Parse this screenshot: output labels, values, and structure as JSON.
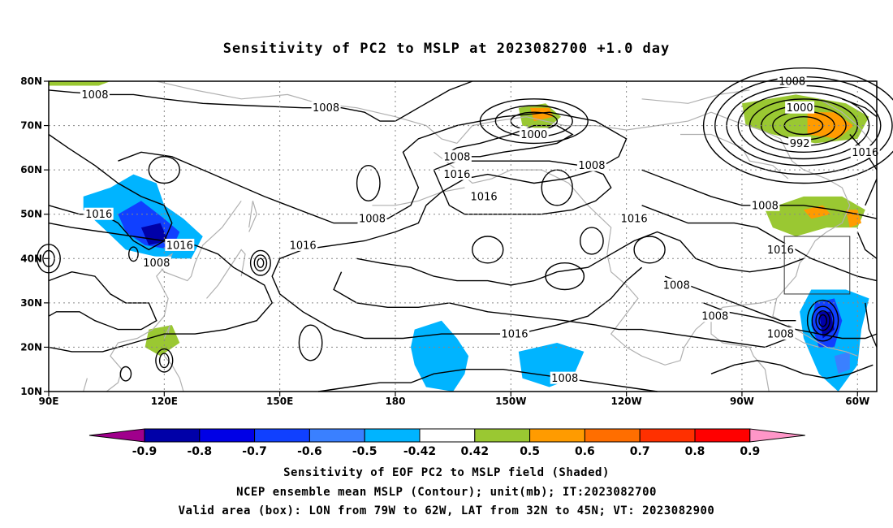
{
  "title": "Sensitivity of PC2 to MSLP at 2023082700 +1.0 day",
  "map": {
    "lon_range": [
      90,
      305
    ],
    "lat_range": [
      10,
      80
    ],
    "lat_ticks": [
      {
        "value": 80,
        "label": "80N"
      },
      {
        "value": 70,
        "label": "70N"
      },
      {
        "value": 60,
        "label": "60N"
      },
      {
        "value": 50,
        "label": "50N"
      },
      {
        "value": 40,
        "label": "40N"
      },
      {
        "value": 30,
        "label": "30N"
      },
      {
        "value": 20,
        "label": "20N"
      },
      {
        "value": 10,
        "label": "10N"
      }
    ],
    "lon_ticks": [
      {
        "value": 90,
        "label": "90E"
      },
      {
        "value": 120,
        "label": "120E"
      },
      {
        "value": 150,
        "label": "150E"
      },
      {
        "value": 180,
        "label": "180"
      },
      {
        "value": 210,
        "label": "150W"
      },
      {
        "value": 240,
        "label": "120W"
      },
      {
        "value": 270,
        "label": "90W"
      },
      {
        "value": 300,
        "label": "60W"
      }
    ],
    "grid": "dotted",
    "valid_box": {
      "lon_min": 281,
      "lon_max": 298,
      "lat_min": 32,
      "lat_max": 45
    },
    "contour_labels": [
      {
        "text": "1008",
        "lon": 102,
        "lat": 77
      },
      {
        "text": "1008",
        "lon": 162,
        "lat": 74
      },
      {
        "text": "1008",
        "lon": 283,
        "lat": 80
      },
      {
        "text": "1000",
        "lon": 285,
        "lat": 74
      },
      {
        "text": "1000",
        "lon": 216,
        "lat": 68
      },
      {
        "text": "992",
        "lon": 285,
        "lat": 66
      },
      {
        "text": "1008",
        "lon": 196,
        "lat": 63
      },
      {
        "text": "1016",
        "lon": 196,
        "lat": 59
      },
      {
        "text": "1008",
        "lon": 231,
        "lat": 61
      },
      {
        "text": "1016",
        "lon": 203,
        "lat": 54
      },
      {
        "text": "1016",
        "lon": 302,
        "lat": 64
      },
      {
        "text": "1016",
        "lon": 103,
        "lat": 50
      },
      {
        "text": "1008",
        "lon": 174,
        "lat": 49
      },
      {
        "text": "1016",
        "lon": 242,
        "lat": 49
      },
      {
        "text": "1008",
        "lon": 276,
        "lat": 52
      },
      {
        "text": "1016",
        "lon": 124,
        "lat": 43
      },
      {
        "text": "1016",
        "lon": 156,
        "lat": 43
      },
      {
        "text": "1016",
        "lon": 280,
        "lat": 42
      },
      {
        "text": "1008",
        "lon": 118,
        "lat": 39
      },
      {
        "text": "1008",
        "lon": 253,
        "lat": 34
      },
      {
        "text": "1008",
        "lon": 263,
        "lat": 27
      },
      {
        "text": "1008",
        "lon": 280,
        "lat": 23
      },
      {
        "text": "1016",
        "lon": 211,
        "lat": 23
      },
      {
        "text": "1008",
        "lon": 224,
        "lat": 13
      }
    ],
    "shaded_regions": [
      {
        "level": 0.5,
        "polygon": [
          [
            90,
            79
          ],
          [
            103,
            79
          ],
          [
            106,
            80
          ],
          [
            90,
            80
          ]
        ]
      },
      {
        "level": -0.5,
        "polygon": [
          [
            99,
            54
          ],
          [
            106,
            56
          ],
          [
            112,
            59
          ],
          [
            118,
            57
          ],
          [
            120,
            52
          ],
          [
            125,
            49
          ],
          [
            130,
            45
          ],
          [
            127,
            40
          ],
          [
            120,
            40
          ],
          [
            110,
            42
          ],
          [
            104,
            47
          ],
          [
            99,
            51
          ]
        ]
      },
      {
        "level": -0.7,
        "polygon": [
          [
            108,
            50
          ],
          [
            114,
            53
          ],
          [
            120,
            49
          ],
          [
            124,
            46
          ],
          [
            122,
            42
          ],
          [
            115,
            43
          ],
          [
            110,
            46
          ]
        ]
      },
      {
        "level": -0.8,
        "polygon": [
          [
            114,
            47
          ],
          [
            119,
            48
          ],
          [
            121,
            44
          ],
          [
            116,
            43
          ]
        ]
      },
      {
        "level": 0.5,
        "polygon": [
          [
            116,
            24
          ],
          [
            122,
            25
          ],
          [
            124,
            21
          ],
          [
            119,
            18
          ],
          [
            115,
            20
          ]
        ]
      },
      {
        "level": 0.5,
        "polygon": [
          [
            212,
            74
          ],
          [
            219,
            75
          ],
          [
            223,
            72
          ],
          [
            219,
            69
          ],
          [
            213,
            70
          ]
        ]
      },
      {
        "level": 0.6,
        "polygon": [
          [
            215,
            74
          ],
          [
            220,
            74
          ],
          [
            221,
            72
          ],
          [
            216,
            71
          ]
        ]
      },
      {
        "level": 0.5,
        "polygon": [
          [
            270,
            75
          ],
          [
            284,
            77
          ],
          [
            297,
            75
          ],
          [
            303,
            72
          ],
          [
            300,
            67
          ],
          [
            289,
            66
          ],
          [
            278,
            68
          ],
          [
            271,
            70
          ]
        ]
      },
      {
        "level": 0.6,
        "polygon": [
          [
            287,
            73
          ],
          [
            294,
            73
          ],
          [
            299,
            70
          ],
          [
            295,
            67
          ],
          [
            287,
            68
          ]
        ]
      },
      {
        "level": 0.5,
        "polygon": [
          [
            276,
            51
          ],
          [
            286,
            54
          ],
          [
            296,
            54
          ],
          [
            302,
            51
          ],
          [
            300,
            47
          ],
          [
            292,
            47
          ],
          [
            284,
            45
          ],
          [
            278,
            47
          ]
        ]
      },
      {
        "level": 0.6,
        "polygon": [
          [
            286,
            51
          ],
          [
            291,
            52
          ],
          [
            293,
            50
          ],
          [
            288,
            49
          ]
        ]
      },
      {
        "level": 0.6,
        "polygon": [
          [
            297,
            51
          ],
          [
            300,
            51
          ],
          [
            301,
            48
          ],
          [
            298,
            47
          ]
        ]
      },
      {
        "level": -0.5,
        "polygon": [
          [
            185,
            24
          ],
          [
            192,
            26
          ],
          [
            196,
            22
          ],
          [
            199,
            18
          ],
          [
            198,
            14
          ],
          [
            195,
            10
          ],
          [
            188,
            11
          ],
          [
            185,
            16
          ],
          [
            184,
            20
          ]
        ]
      },
      {
        "level": -0.5,
        "polygon": [
          [
            212,
            19
          ],
          [
            222,
            21
          ],
          [
            229,
            19
          ],
          [
            226,
            13
          ],
          [
            220,
            11
          ],
          [
            213,
            13
          ]
        ]
      },
      {
        "level": -0.5,
        "polygon": [
          [
            288,
            33
          ],
          [
            297,
            33
          ],
          [
            303,
            31
          ],
          [
            301,
            24
          ],
          [
            300,
            16
          ],
          [
            295,
            10
          ],
          [
            290,
            14
          ],
          [
            286,
            22
          ],
          [
            285,
            28
          ]
        ]
      },
      {
        "level": -0.7,
        "polygon": [
          [
            289,
            30
          ],
          [
            294,
            31
          ],
          [
            296,
            26
          ],
          [
            294,
            20
          ],
          [
            290,
            20
          ],
          [
            288,
            25
          ]
        ]
      },
      {
        "level": -0.8,
        "polygon": [
          [
            290,
            28
          ],
          [
            293,
            28
          ],
          [
            294,
            24
          ],
          [
            291,
            22
          ]
        ]
      },
      {
        "level": -0.6,
        "polygon": [
          [
            294,
            18
          ],
          [
            298,
            19
          ],
          [
            298,
            15
          ],
          [
            295,
            14
          ]
        ]
      }
    ]
  },
  "colorbar": {
    "levels": [
      "-0.9",
      "-0.8",
      "-0.7",
      "-0.6",
      "-0.5",
      "-0.42",
      "0.42",
      "0.5",
      "0.6",
      "0.7",
      "0.8",
      "0.9"
    ],
    "colors": [
      "#a0008c",
      "#0000a8",
      "#0000e6",
      "#1040ff",
      "#3a80ff",
      "#00b4ff",
      "#ffffff",
      "#9ac832",
      "#ff9b00",
      "#ff6e00",
      "#ff3000",
      "#ff0000",
      "#ff96c8"
    ],
    "shade_colors": {
      "-0.8": "#0000a8",
      "-0.7": "#1040ff",
      "-0.6": "#3a80ff",
      "-0.5": "#00b4ff",
      "0.5": "#9ac832",
      "0.6": "#ff9b00"
    }
  },
  "captions": {
    "line1": "Sensitivity of EOF PC2 to MSLP field (Shaded)",
    "line2": "NCEP ensemble mean MSLP (Contour); unit(mb); IT:2023082700",
    "line3": "Valid area (box): LON from 79W to 62W, LAT from 32N to 45N; VT: 2023082900"
  }
}
